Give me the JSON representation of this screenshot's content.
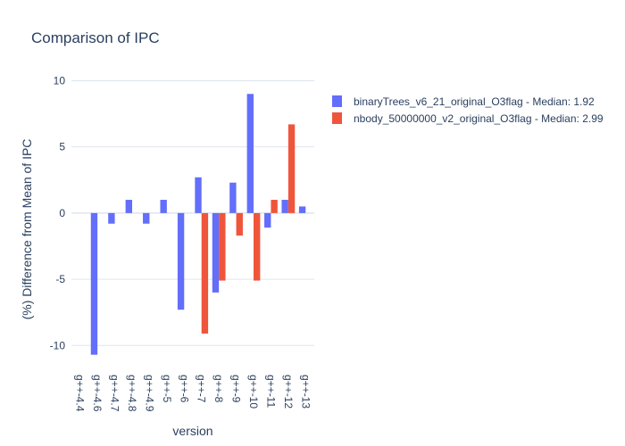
{
  "chart_data": {
    "type": "bar",
    "title": "Comparison of IPC",
    "xlabel": "version",
    "ylabel": "(%) Difference from Mean of IPC",
    "categories": [
      "g++-4.4",
      "g++-4.6",
      "g++-4.7",
      "g++-4.8",
      "g++-4.9",
      "g++-5",
      "g++-6",
      "g++-7",
      "g++-8",
      "g++-9",
      "g++-10",
      "g++-11",
      "g++-12",
      "g++-13"
    ],
    "ylim": [
      -11.8,
      10.3
    ],
    "yticks": [
      -10,
      -5,
      0,
      5,
      10
    ],
    "grid": true,
    "legend_position": "top-right",
    "series": [
      {
        "name": "binaryTrees_v6_21_original_O3flag - Median: 1.92",
        "color": "#636efa",
        "values": [
          null,
          -10.7,
          -0.8,
          1.0,
          -0.8,
          1.0,
          -7.3,
          2.7,
          -6.0,
          2.3,
          9.0,
          -1.1,
          1.0,
          0.5
        ]
      },
      {
        "name": "nbody_50000000_v2_original_O3flag - Median: 2.99",
        "color": "#ef553b",
        "values": [
          null,
          null,
          null,
          null,
          null,
          null,
          null,
          -9.1,
          -5.1,
          -1.7,
          -5.1,
          1.0,
          6.7,
          null
        ]
      }
    ]
  }
}
